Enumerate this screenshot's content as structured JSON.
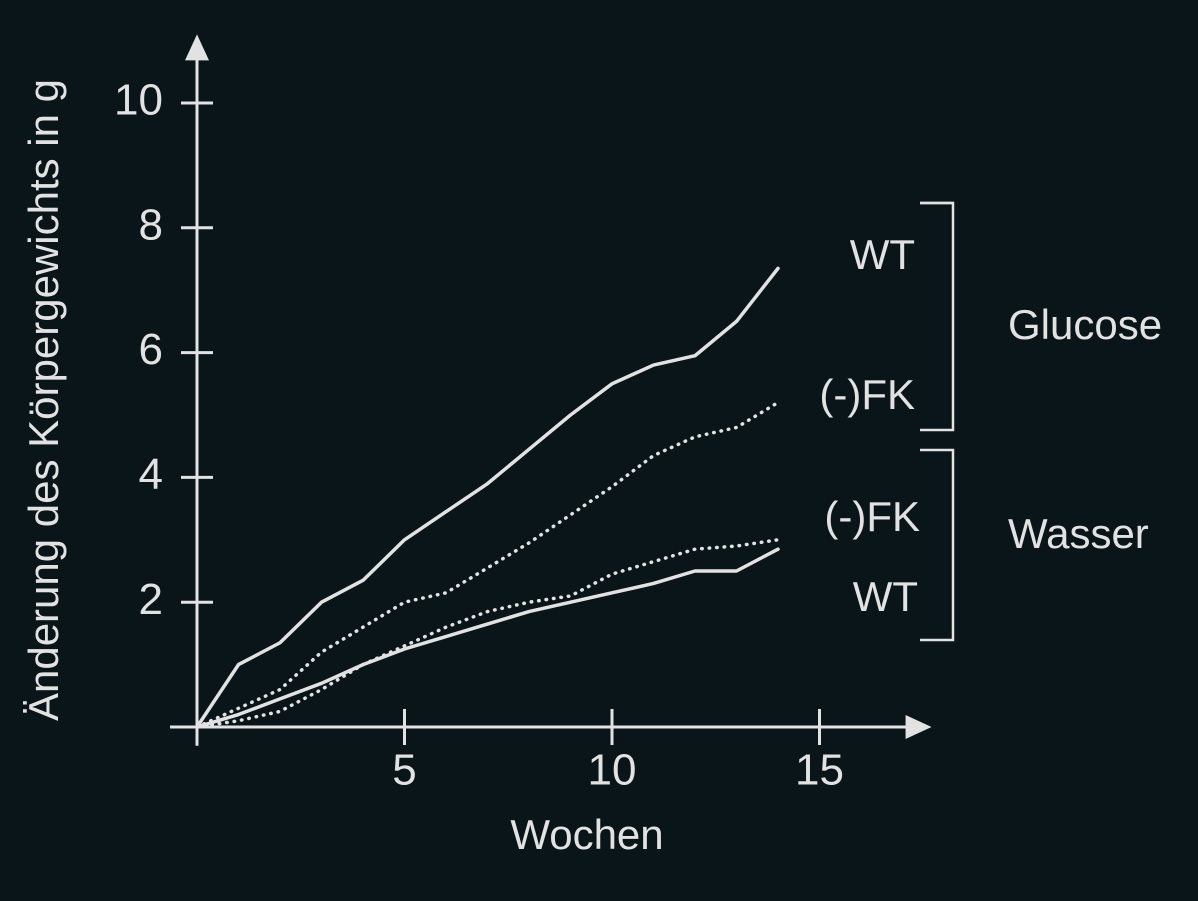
{
  "chart_data": {
    "type": "line",
    "x_label": "Wochen",
    "y_label": "Änderung des Körpergewichts in g",
    "x": [
      0,
      1,
      2,
      3,
      4,
      5,
      6,
      7,
      8,
      9,
      10,
      11,
      12,
      13,
      14
    ],
    "series": [
      {
        "name": "WT",
        "color": "#e2e2e2",
        "style": "solid",
        "values": [
          0,
          1.0,
          1.35,
          2.0,
          2.35,
          3.0,
          3.45,
          3.9,
          4.45,
          5.0,
          5.5,
          5.8,
          5.95,
          6.5,
          7.35
        ]
      },
      {
        "name": "(-)FK",
        "color": "#e2e2e2",
        "style": "dotted",
        "values": [
          0,
          0.3,
          0.6,
          1.2,
          1.6,
          2.0,
          2.15,
          2.55,
          2.95,
          3.4,
          3.85,
          4.35,
          4.65,
          4.8,
          5.2
        ]
      },
      {
        "name": "(-)FK",
        "color": "#e2e2e2",
        "style": "dotted",
        "values": [
          0,
          0.1,
          0.25,
          0.6,
          1.0,
          1.3,
          1.6,
          1.85,
          2.0,
          2.1,
          2.45,
          2.65,
          2.85,
          2.9,
          3.0
        ]
      },
      {
        "name": "WT",
        "color": "#e2e2e2",
        "style": "solid",
        "values": [
          0,
          0.2,
          0.45,
          0.7,
          1.0,
          1.25,
          1.45,
          1.65,
          1.85,
          2.0,
          2.15,
          2.3,
          2.5,
          2.5,
          2.85
        ]
      }
    ],
    "annotations": [
      "Glucose",
      "Wasser"
    ],
    "xlim": [
      -0.65,
      17.7
    ],
    "ylim": [
      -0.3,
      11.1
    ],
    "xticks": [
      5,
      10,
      15
    ],
    "yticks": [
      2,
      4,
      6,
      8,
      10
    ]
  }
}
